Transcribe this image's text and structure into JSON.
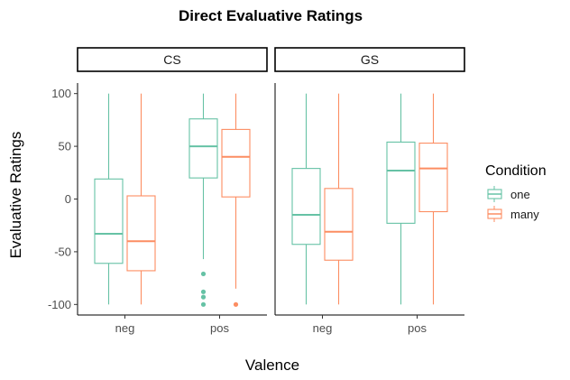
{
  "chart_data": {
    "type": "boxplot",
    "title": "Direct Evaluative Ratings",
    "xlabel": "Valence",
    "ylabel": "Evaluative Ratings",
    "ylim": [
      -110,
      110
    ],
    "yticks": [
      -100,
      -50,
      0,
      50,
      100
    ],
    "grid": false,
    "facets": [
      "CS",
      "GS"
    ],
    "categories": [
      "neg",
      "pos"
    ],
    "legend": {
      "title": "Condition",
      "position": "right",
      "entries": [
        {
          "name": "one",
          "color": "#66c2a5"
        },
        {
          "name": "many",
          "color": "#fc8d62"
        }
      ]
    },
    "series": [
      {
        "name": "one",
        "color": "#66c2a5",
        "boxes": [
          {
            "facet": "CS",
            "x": "neg",
            "min": -100,
            "q1": -61,
            "median": -33,
            "q3": 19,
            "max": 100,
            "outliers": []
          },
          {
            "facet": "CS",
            "x": "pos",
            "min": -57,
            "q1": 20,
            "median": 50,
            "q3": 76,
            "max": 100,
            "outliers": [
              -71,
              -88,
              -93,
              -100
            ]
          },
          {
            "facet": "GS",
            "x": "neg",
            "min": -100,
            "q1": -43,
            "median": -15,
            "q3": 29,
            "max": 100,
            "outliers": []
          },
          {
            "facet": "GS",
            "x": "pos",
            "min": -100,
            "q1": -23,
            "median": 27,
            "q3": 54,
            "max": 100,
            "outliers": []
          }
        ]
      },
      {
        "name": "many",
        "color": "#fc8d62",
        "boxes": [
          {
            "facet": "CS",
            "x": "neg",
            "min": -100,
            "q1": -68,
            "median": -40,
            "q3": 3,
            "max": 100,
            "outliers": []
          },
          {
            "facet": "CS",
            "x": "pos",
            "min": -85,
            "q1": 2,
            "median": 40,
            "q3": 66,
            "max": 100,
            "outliers": [
              -100
            ]
          },
          {
            "facet": "GS",
            "x": "neg",
            "min": -100,
            "q1": -58,
            "median": -31,
            "q3": 10,
            "max": 100,
            "outliers": []
          },
          {
            "facet": "GS",
            "x": "pos",
            "min": -100,
            "q1": -12,
            "median": 29,
            "q3": 53,
            "max": 100,
            "outliers": []
          }
        ]
      }
    ]
  }
}
